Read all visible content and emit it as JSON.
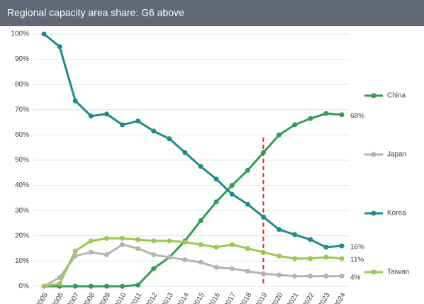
{
  "chart_data": {
    "type": "line",
    "title": "Regional capacity area share: G6 above",
    "categories": [
      "2005",
      "2006",
      "2007",
      "2008",
      "2009",
      "2010",
      "2011",
      "2012",
      "2013",
      "2014",
      "2015",
      "2016",
      "2017",
      "2018",
      "2019",
      "2020",
      "2021",
      "2022",
      "2023",
      "2024"
    ],
    "ylim": [
      0,
      100
    ],
    "yticks": [
      {
        "value": 0,
        "label": "0%"
      },
      {
        "value": 10,
        "label": "10%"
      },
      {
        "value": 20,
        "label": "20%"
      },
      {
        "value": 30,
        "label": "30%"
      },
      {
        "value": 40,
        "label": "40%"
      },
      {
        "value": 50,
        "label": "50%"
      },
      {
        "value": 60,
        "label": "60%"
      },
      {
        "value": 70,
        "label": "70%"
      },
      {
        "value": 80,
        "label": "80%"
      },
      {
        "value": 90,
        "label": "90%"
      },
      {
        "value": 100,
        "label": "100%"
      }
    ],
    "grid": true,
    "vline": {
      "x": "2019",
      "color": "#d92b2b"
    },
    "series": [
      {
        "name": "China",
        "color": "#2e9e57",
        "values": [
          0,
          0,
          0,
          0,
          0,
          0,
          0.5,
          7,
          11.5,
          18,
          26,
          33.5,
          40,
          46,
          53,
          60,
          64,
          66.5,
          68.5,
          68
        ],
        "value_labels": [
          null,
          null,
          null,
          null,
          null,
          null,
          null,
          null,
          null,
          null,
          null,
          null,
          null,
          null,
          null,
          null,
          null,
          null,
          null,
          "68%"
        ]
      },
      {
        "name": "Japan",
        "color": "#b4b4b4",
        "values": [
          0,
          3.5,
          12,
          13.5,
          12.5,
          16.5,
          15,
          12.5,
          11.5,
          10.5,
          9.5,
          7.5,
          7,
          6,
          5,
          4.5,
          4,
          4,
          4,
          4
        ],
        "value_labels": [
          null,
          null,
          null,
          null,
          null,
          null,
          null,
          null,
          null,
          null,
          null,
          null,
          null,
          null,
          null,
          null,
          null,
          null,
          null,
          "4%"
        ]
      },
      {
        "name": "Korea",
        "color": "#1b8c8c",
        "values": [
          100,
          95,
          73.5,
          67.5,
          68.3,
          64,
          65.5,
          61.5,
          58.5,
          53,
          47.5,
          42.5,
          36.5,
          32.5,
          27.5,
          22.5,
          20.5,
          18.5,
          15.5,
          16
        ],
        "value_labels": [
          null,
          null,
          null,
          null,
          null,
          null,
          null,
          null,
          null,
          null,
          null,
          null,
          null,
          null,
          null,
          null,
          null,
          null,
          null,
          "16%"
        ]
      },
      {
        "name": "Taiwan",
        "color": "#9dc84c",
        "values": [
          0,
          1,
          14,
          18,
          19,
          19,
          18.5,
          18,
          18,
          17.5,
          16.5,
          15.5,
          16.5,
          15,
          13.5,
          12,
          11,
          11,
          11.5,
          11
        ],
        "value_labels": [
          null,
          null,
          null,
          null,
          null,
          null,
          null,
          null,
          null,
          null,
          null,
          null,
          null,
          null,
          null,
          null,
          null,
          null,
          null,
          "11%"
        ]
      }
    ]
  }
}
